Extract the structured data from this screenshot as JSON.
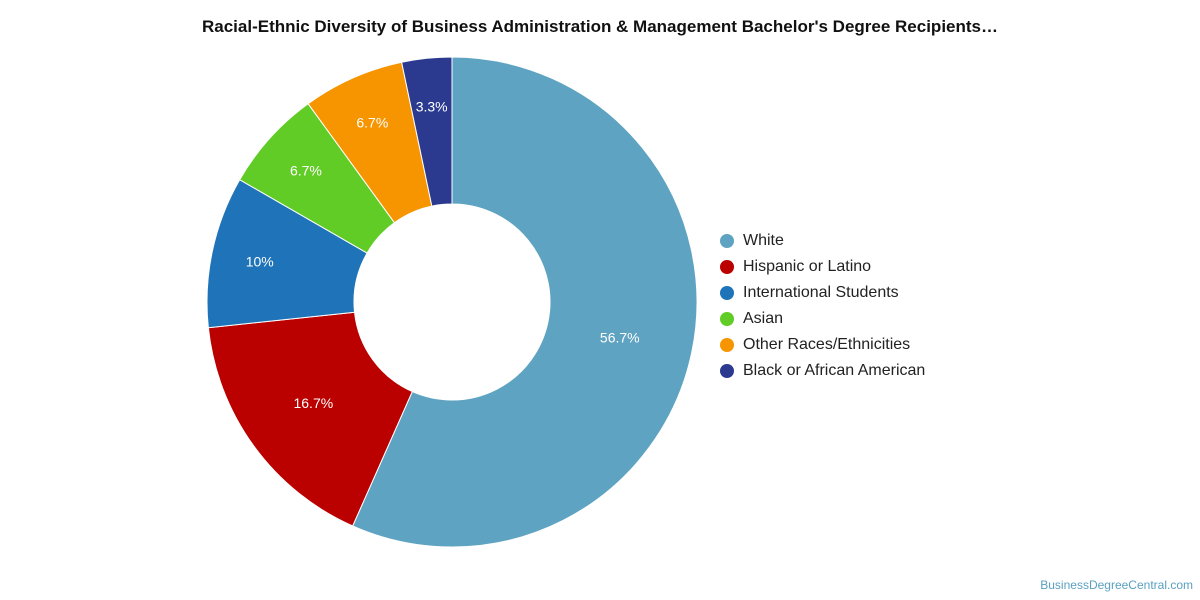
{
  "chart_data": {
    "type": "donut",
    "title": "Racial-Ethnic Diversity of Business Administration & Management Bachelor's Degree Recipients…",
    "legend_position": "right",
    "slices": [
      {
        "name": "White",
        "value": 56.7,
        "label": "56.7%",
        "color": "#5ea3c1"
      },
      {
        "name": "Hispanic or Latino",
        "value": 16.7,
        "label": "16.7%",
        "color": "#bb0000"
      },
      {
        "name": "International Students",
        "value": 10,
        "label": "10%",
        "color": "#1f73b8"
      },
      {
        "name": "Asian",
        "value": 6.7,
        "label": "6.7%",
        "color": "#62cc27"
      },
      {
        "name": "Other Races/Ethnicities",
        "value": 6.7,
        "label": "6.7%",
        "color": "#f79500"
      },
      {
        "name": "Black or African American",
        "value": 3.3,
        "label": "3.3%",
        "color": "#2b3a8f"
      }
    ]
  },
  "watermark": "BusinessDegreeCentral.com"
}
